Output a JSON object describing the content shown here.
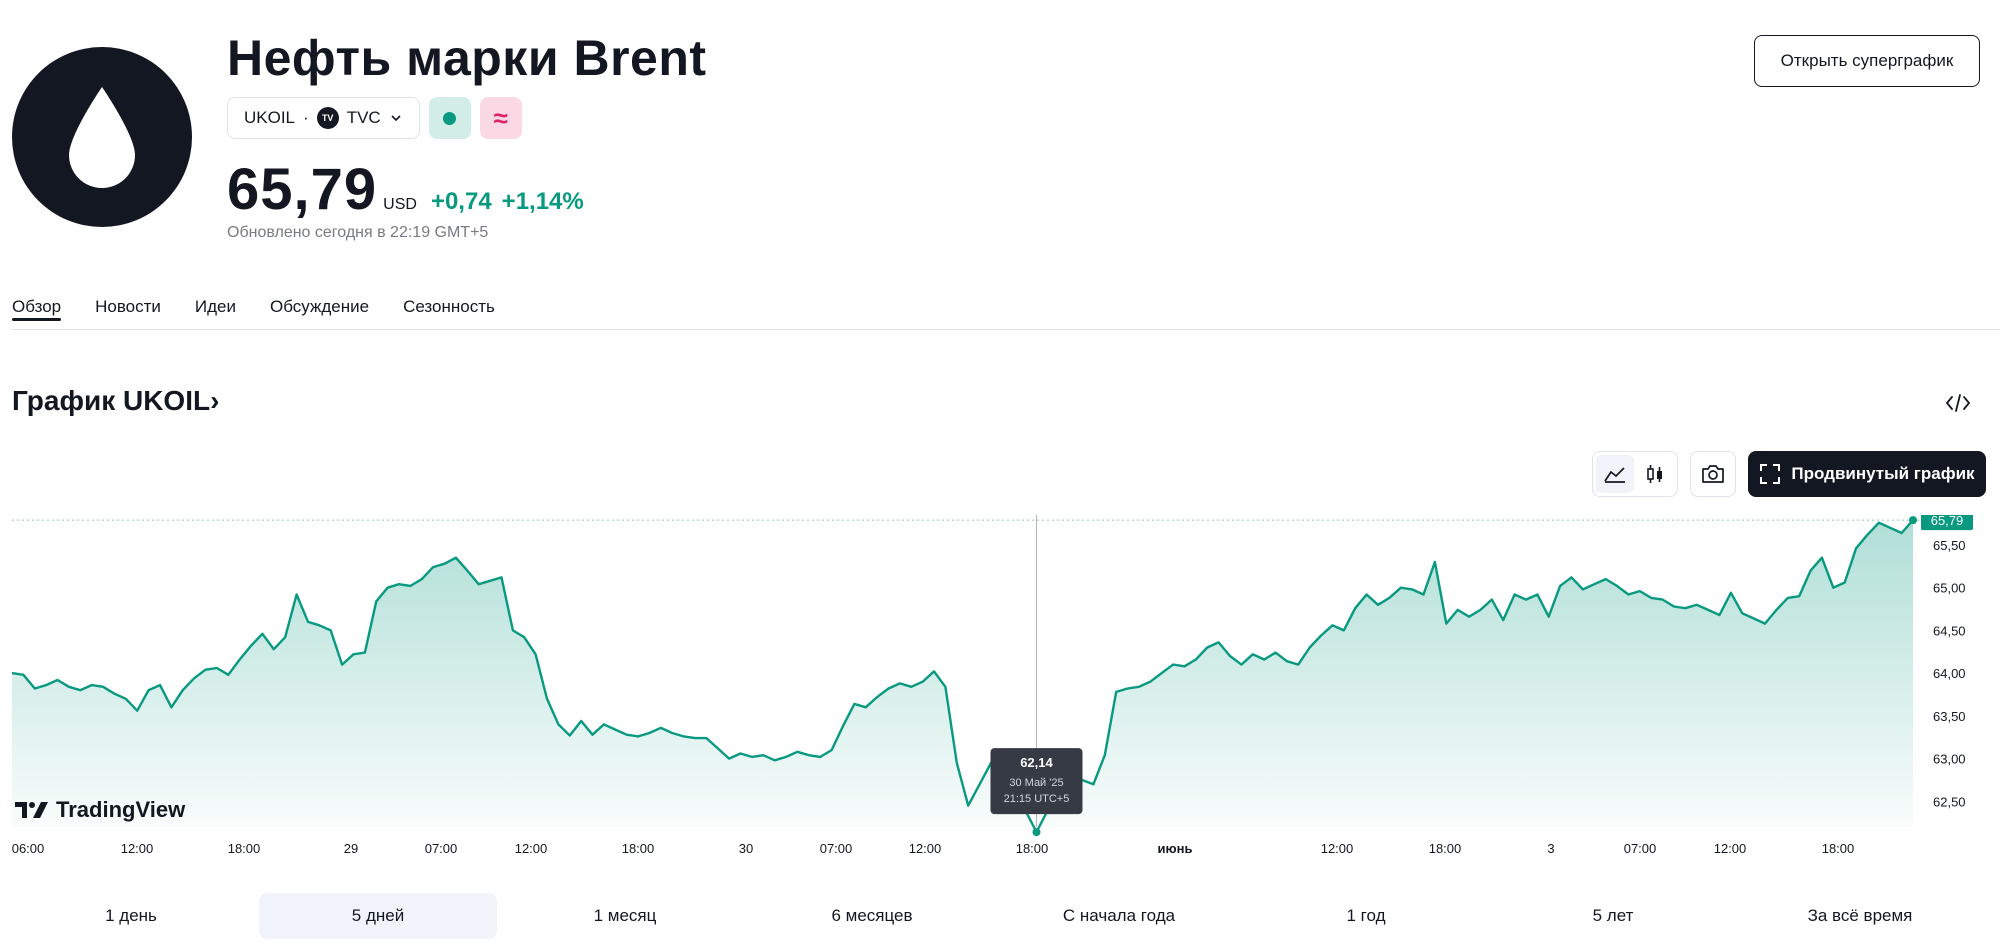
{
  "header": {
    "title": "Нефть марки Brent",
    "symbol": "UKOIL",
    "separator": "·",
    "exchange": "TVC",
    "exchange_logo": "TV",
    "status_icon_pink": "≈"
  },
  "quote": {
    "price": "65,79",
    "currency": "USD",
    "change_abs": "+0,74",
    "change_pct": "+1,14%",
    "updated": "Обновлено сегодня в 22:19 GMT+5"
  },
  "actions": {
    "supergraph": "Открыть суперграфик"
  },
  "tabs": [
    {
      "label": "Обзор",
      "active": true
    },
    {
      "label": "Новости"
    },
    {
      "label": "Идеи"
    },
    {
      "label": "Обсуждение"
    },
    {
      "label": "Сезонность"
    }
  ],
  "chart_section": {
    "heading": "График UKOIL",
    "heading_chevron": "›",
    "advanced_button": "Продвинутый график",
    "watermark": "TradingView"
  },
  "colors": {
    "accent": "#089981",
    "text": "#131722",
    "muted": "#787b86"
  },
  "chart_data": {
    "type": "area",
    "ylim": [
      62.2,
      65.85
    ],
    "y_ticks": [
      "62,50",
      "63,00",
      "63,50",
      "64,00",
      "64,50",
      "65,00",
      "65,50"
    ],
    "y_tick_values": [
      62.5,
      63.0,
      63.5,
      64.0,
      64.5,
      65.0,
      65.5
    ],
    "x_ticks": [
      "06:00",
      "12:00",
      "18:00",
      "29",
      "07:00",
      "12:00",
      "18:00",
      "30",
      "07:00",
      "12:00",
      "18:00",
      "июнь",
      "12:00",
      "18:00",
      "3",
      "07:00",
      "12:00",
      "18:00"
    ],
    "last_value_label": "65,79",
    "tooltip": {
      "value": "62,14",
      "date": "30 Май '25",
      "time": "21:15 UTC+5"
    },
    "series": [
      {
        "values": [
          64.0,
          63.98,
          63.82,
          63.86,
          63.92,
          63.84,
          63.8,
          63.86,
          63.84,
          63.76,
          63.7,
          63.56,
          63.8,
          63.86,
          63.6,
          63.8,
          63.94,
          64.04,
          64.06,
          63.98,
          64.16,
          64.32,
          64.46,
          64.28,
          64.42,
          64.92,
          64.6,
          64.56,
          64.5,
          64.1,
          64.22,
          64.24,
          64.84,
          65.0,
          65.04,
          65.02,
          65.1,
          65.24,
          65.28,
          65.35,
          65.2,
          65.04,
          65.08,
          65.12,
          64.5,
          64.42,
          64.22,
          63.7,
          63.4,
          63.27,
          63.44,
          63.28,
          63.4,
          63.34,
          63.28,
          63.26,
          63.3,
          63.36,
          63.3,
          63.26,
          63.24,
          63.24,
          63.12,
          63.0,
          63.06,
          63.02,
          63.04,
          62.98,
          63.02,
          63.08,
          63.04,
          63.02,
          63.1,
          63.38,
          63.64,
          63.6,
          63.72,
          63.82,
          63.88,
          63.84,
          63.9,
          64.02,
          63.84,
          62.95,
          62.45,
          62.7,
          62.95,
          62.6,
          62.45,
          62.4,
          62.14,
          62.4,
          62.5,
          62.62,
          62.75,
          62.7,
          63.04,
          63.78,
          63.82,
          63.84,
          63.9,
          64.0,
          64.1,
          64.08,
          64.16,
          64.3,
          64.36,
          64.2,
          64.1,
          64.22,
          64.16,
          64.24,
          64.14,
          64.1,
          64.3,
          64.44,
          64.56,
          64.5,
          64.76,
          64.92,
          64.8,
          64.88,
          65.0,
          64.98,
          64.92,
          65.3,
          64.58,
          64.74,
          64.66,
          64.74,
          64.86,
          64.62,
          64.92,
          64.86,
          64.92,
          64.66,
          65.02,
          65.12,
          64.98,
          65.04,
          65.1,
          65.02,
          64.92,
          64.96,
          64.88,
          64.86,
          64.78,
          64.76,
          64.8,
          64.74,
          64.68,
          64.94,
          64.7,
          64.64,
          64.58,
          64.74,
          64.88,
          64.9,
          65.2,
          65.35,
          65.0,
          65.06,
          65.46,
          65.62,
          65.76,
          65.7,
          65.64,
          65.79
        ]
      }
    ]
  },
  "ranges": [
    {
      "label": "1 день"
    },
    {
      "label": "5 дней",
      "active": true
    },
    {
      "label": "1 месяц"
    },
    {
      "label": "6 месяцев"
    },
    {
      "label": "С начала года"
    },
    {
      "label": "1 год"
    },
    {
      "label": "5 лет"
    },
    {
      "label": "За всё время"
    }
  ]
}
